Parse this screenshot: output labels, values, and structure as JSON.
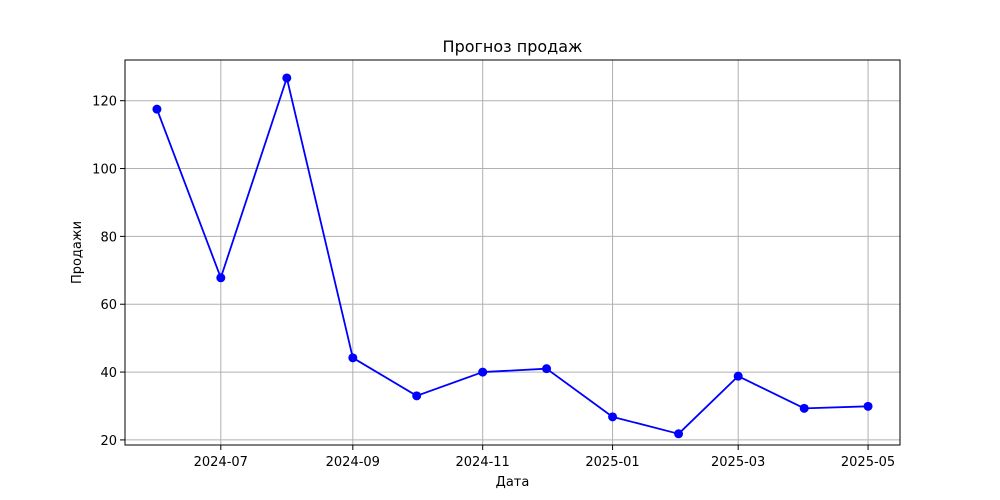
{
  "chart_data": {
    "type": "line",
    "title": "Прогноз продаж",
    "xlabel": "Дата",
    "ylabel": "Продажи",
    "x": [
      "2024-06",
      "2024-07",
      "2024-08",
      "2024-09",
      "2024-10",
      "2024-11",
      "2024-12",
      "2025-01",
      "2025-02",
      "2025-03",
      "2025-04",
      "2025-05"
    ],
    "series": [
      {
        "values": [
          117.5,
          67.8,
          126.7,
          44.2,
          33.0,
          40.0,
          41.0,
          26.8,
          21.8,
          38.8,
          29.3,
          29.9
        ],
        "color": "#0000ff",
        "marker": "circle"
      }
    ],
    "xticks": [
      "2024-07",
      "2024-09",
      "2024-11",
      "2025-01",
      "2025-03",
      "2025-05"
    ],
    "yticks": [
      20,
      40,
      60,
      80,
      100,
      120
    ],
    "xlim": [
      "2024-05-17",
      "2025-05-16"
    ],
    "ylim": [
      18.5,
      132
    ],
    "grid": true,
    "legend": "none"
  }
}
